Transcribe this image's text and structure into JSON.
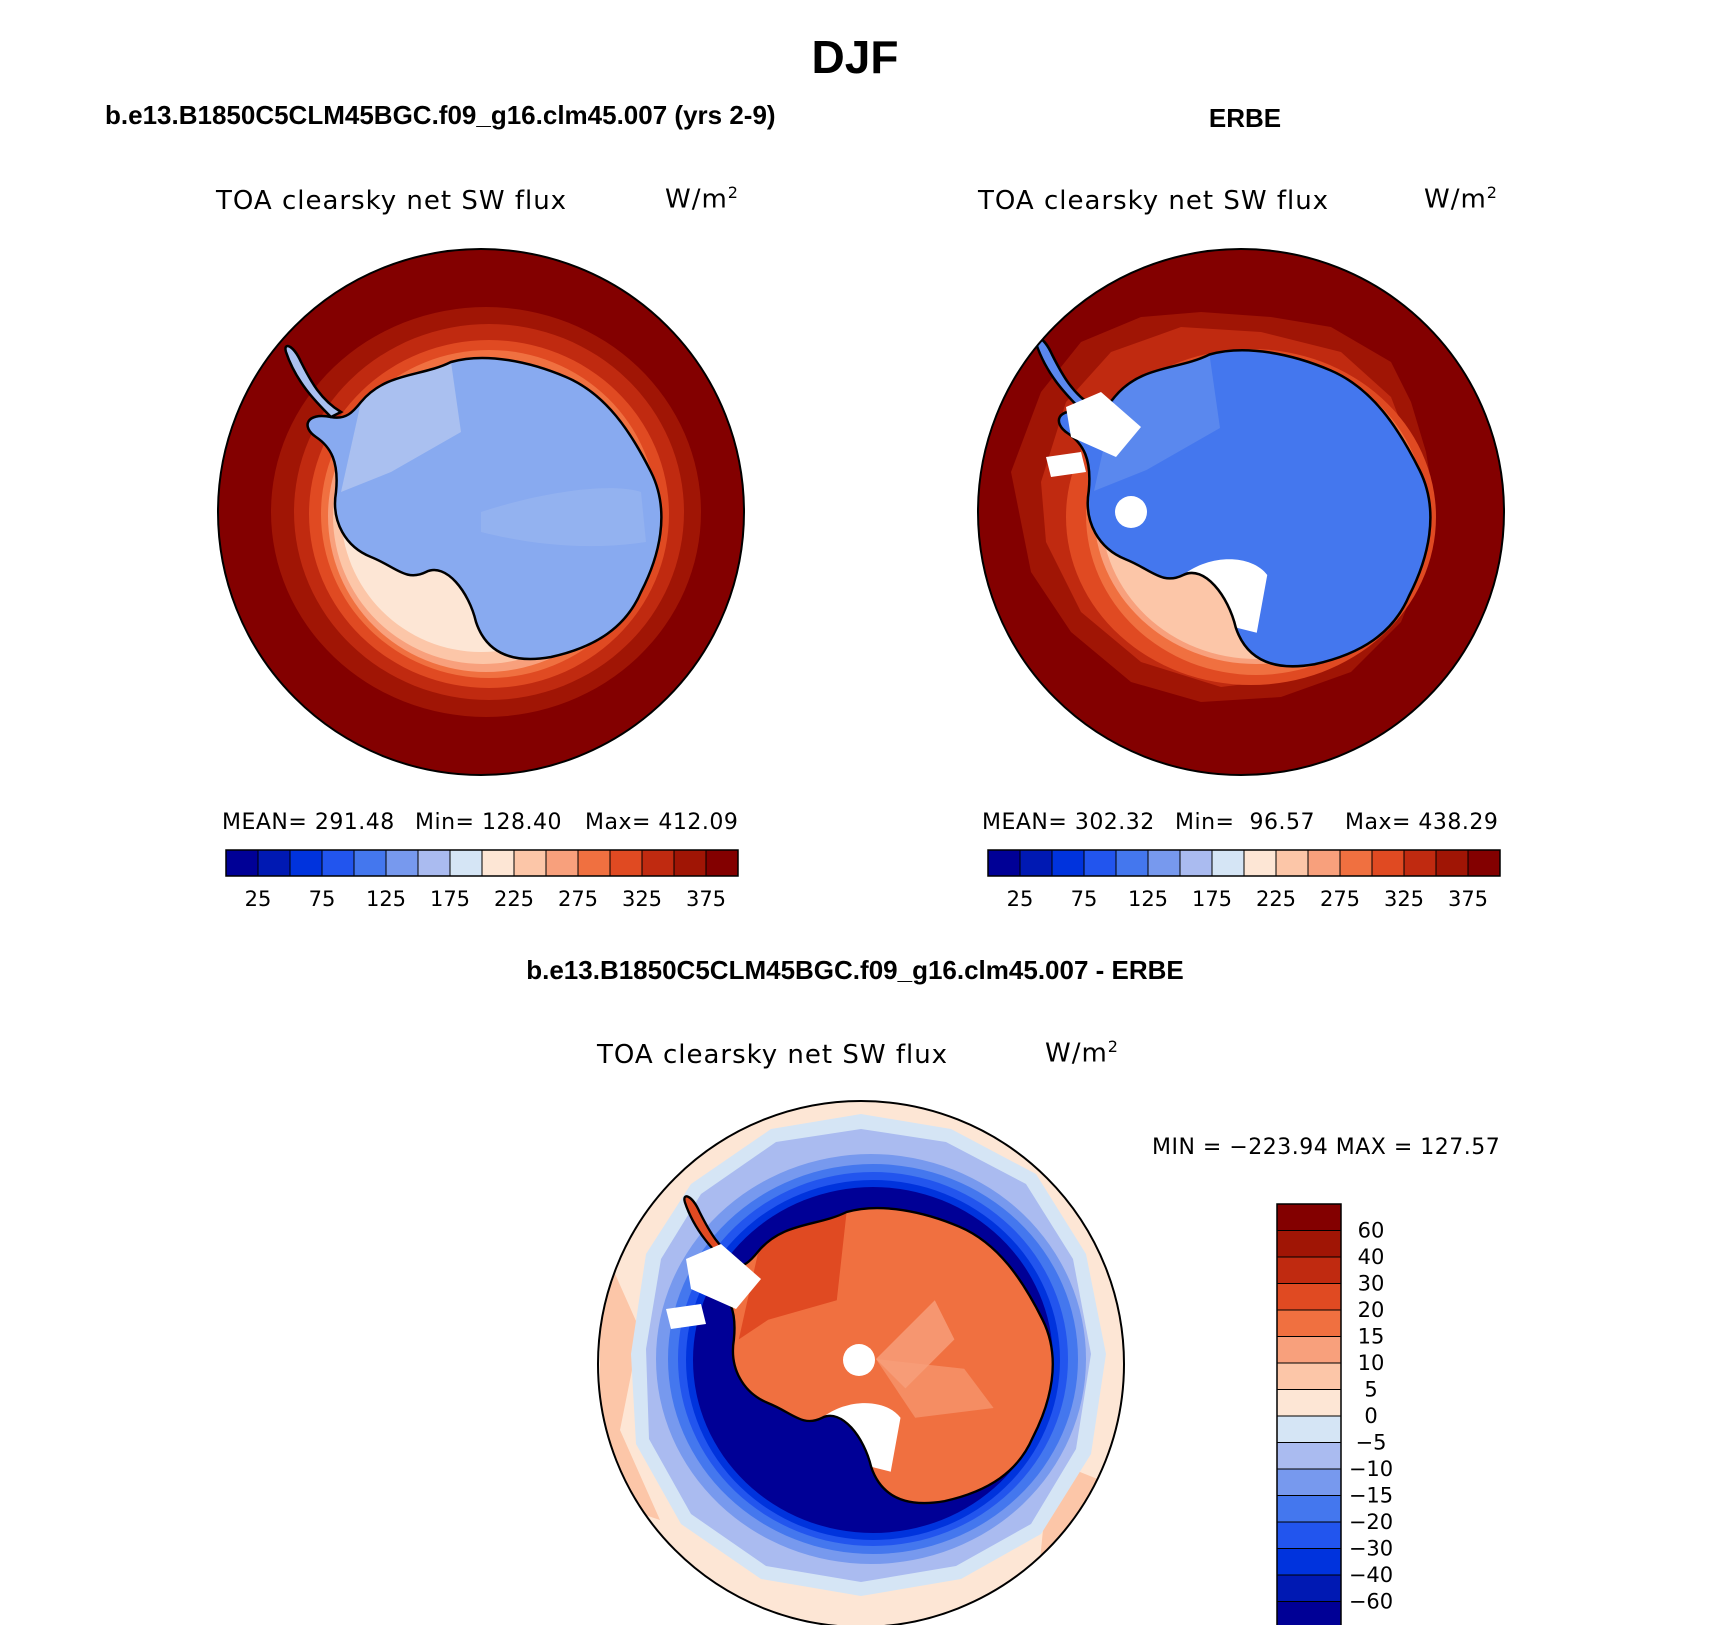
{
  "figure": {
    "title": "DJF",
    "panels": [
      {
        "case_label": "b.e13.B1850C5CLM45BGC.f09_g16.clm45.007 (yrs 2-9)",
        "variable": "TOA clearsky net SW flux",
        "unit_base": "W/m",
        "unit_sup": "2",
        "mean_text": "MEAN= 291.48",
        "min_text": "Min= 128.40",
        "max_text": "Max= 412.09"
      },
      {
        "case_label": "ERBE",
        "variable": "TOA clearsky net SW flux",
        "unit_base": "W/m",
        "unit_sup": "2",
        "mean_text": "MEAN= 302.32",
        "min_text": "Min=  96.57",
        "max_text": "Max= 438.29"
      },
      {
        "case_label": "b.e13.B1850C5CLM45BGC.f09_g16.clm45.007 - ERBE",
        "variable": "TOA clearsky net SW flux",
        "unit_base": "W/m",
        "unit_sup": "2",
        "minmax_text": "MIN = −223.94 MAX = 127.57"
      }
    ]
  },
  "chart_data": [
    {
      "type": "heatmap",
      "projection": "south-polar-stereographic",
      "title": "TOA clearsky net SW flux",
      "units": "W/m2",
      "stats": {
        "mean": 291.48,
        "min": 128.4,
        "max": 412.09
      },
      "colorbar": {
        "orientation": "horizontal",
        "levels": [
          25,
          50,
          75,
          100,
          125,
          150,
          175,
          200,
          225,
          250,
          275,
          300,
          325,
          350,
          375
        ],
        "tick_labels": [
          "25",
          "75",
          "125",
          "175",
          "225",
          "275",
          "325",
          "375"
        ],
        "colors": [
          "#000096",
          "#0019b3",
          "#0033dd",
          "#2255ee",
          "#4477ee",
          "#7799ee",
          "#aabbf0",
          "#d5e5f5",
          "#fde6d5",
          "#fcc6a8",
          "#f8a07c",
          "#f07040",
          "#e04a22",
          "#c02a10",
          "#a01505",
          "#830000"
        ]
      },
      "field_description": "ocean values ~400 W/m2 decreasing poleward; continent ~150 W/m2"
    },
    {
      "type": "heatmap",
      "projection": "south-polar-stereographic",
      "title": "TOA clearsky net SW flux",
      "units": "W/m2",
      "stats": {
        "mean": 302.32,
        "min": 96.57,
        "max": 438.29
      },
      "colorbar": {
        "orientation": "horizontal",
        "levels": [
          25,
          50,
          75,
          100,
          125,
          150,
          175,
          200,
          225,
          250,
          275,
          300,
          325,
          350,
          375
        ],
        "tick_labels": [
          "25",
          "75",
          "125",
          "175",
          "225",
          "275",
          "325",
          "375"
        ],
        "colors": [
          "#000096",
          "#0019b3",
          "#0033dd",
          "#2255ee",
          "#4477ee",
          "#7799ee",
          "#aabbf0",
          "#d5e5f5",
          "#fde6d5",
          "#fcc6a8",
          "#f8a07c",
          "#f07040",
          "#e04a22",
          "#c02a10",
          "#a01505",
          "#830000"
        ]
      }
    },
    {
      "type": "heatmap",
      "projection": "south-polar-stereographic",
      "title": "TOA clearsky net SW flux",
      "units": "W/m2",
      "stats": {
        "min": -223.94,
        "max": 127.57
      },
      "colorbar": {
        "orientation": "vertical",
        "levels": [
          60,
          40,
          30,
          20,
          15,
          10,
          5,
          0,
          -5,
          -10,
          -15,
          -20,
          -30,
          -40,
          -60
        ],
        "tick_labels": [
          "60",
          "40",
          "30",
          "20",
          "15",
          "10",
          "5",
          "0",
          "−5",
          "−10",
          "−15",
          "−20",
          "−30",
          "−40",
          "−60"
        ],
        "colors": [
          "#830000",
          "#a01505",
          "#c02a10",
          "#e04a22",
          "#f07040",
          "#f8a07c",
          "#fcc6a8",
          "#fde6d5",
          "#d5e5f5",
          "#aabbf0",
          "#7799ee",
          "#4477ee",
          "#2255ee",
          "#0033dd",
          "#0019b3",
          "#000096"
        ]
      }
    }
  ]
}
